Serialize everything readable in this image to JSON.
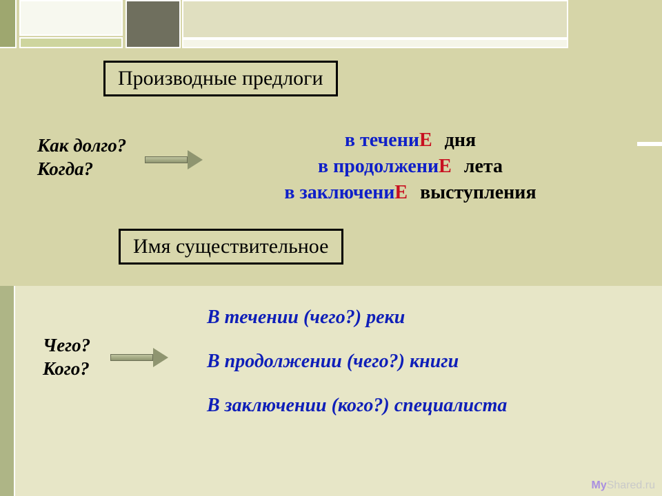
{
  "title": "Производные предлоги",
  "question1_line1": "Как долго?",
  "question1_line2": "Когда?",
  "prep": {
    "l1_pre": "в течени",
    "l1_cap": "Е",
    "l1_tail": "дня",
    "l2_pre": "в продолжени",
    "l2_cap": "Е",
    "l2_tail": "лета",
    "l3_pre": "в заключени",
    "l3_cap": "Е",
    "l3_tail": "выступления"
  },
  "noun_heading": "Имя существительное",
  "question2_line1": "Чего?",
  "question2_line2": "Кого?",
  "noun_lines": {
    "l1": "В течении (чего?) реки",
    "l2": "В продолжении (чего?) книги",
    "l3": "В заключении (кого?) специалиста"
  },
  "watermark_my": "My",
  "watermark_rest": "Shared.ru",
  "colors": {
    "bg": "#d6d5a8",
    "blue": "#1020c8",
    "red": "#c81020",
    "noun_blue": "#0f1fb8",
    "strip": "#e7e6c7"
  }
}
